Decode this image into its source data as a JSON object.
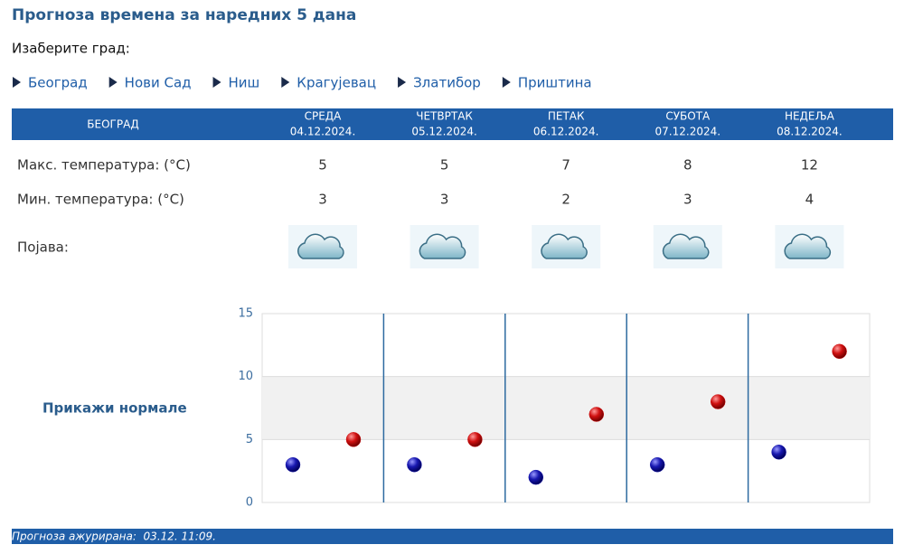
{
  "header": {
    "title": "Прогноза времена за наредних 5 дана",
    "prompt": "Изаберите град:"
  },
  "cities": [
    "Београд",
    "Нови Сад",
    "Ниш",
    "Крагујевац",
    "Златибор",
    "Приштина"
  ],
  "table": {
    "city": "БЕОГРАД",
    "days": [
      {
        "name": "СРЕДА",
        "date": "04.12.2024."
      },
      {
        "name": "ЧЕТВРТАК",
        "date": "05.12.2024."
      },
      {
        "name": "ПЕТАК",
        "date": "06.12.2024."
      },
      {
        "name": "СУБОТА",
        "date": "07.12.2024."
      },
      {
        "name": "НЕДЕЉА",
        "date": "08.12.2024."
      }
    ],
    "rows": [
      {
        "label": "Макс. температура: (°C)",
        "values": [
          5,
          5,
          7,
          8,
          12
        ]
      },
      {
        "label": "Мин. температура: (°C)",
        "values": [
          3,
          3,
          2,
          3,
          4
        ]
      }
    ],
    "phenomenon_label": "Појава:"
  },
  "normals_link": "Прикажи нормале",
  "chart_data": {
    "type": "scatter",
    "ylim": [
      0,
      15
    ],
    "yticks": [
      0,
      5,
      10,
      15
    ],
    "shaded_range": [
      5,
      10
    ],
    "max_color": "#d01010",
    "min_color": "#1818b0"
  },
  "footer": "Прогноза ажурирана:  03.12. 11:09."
}
